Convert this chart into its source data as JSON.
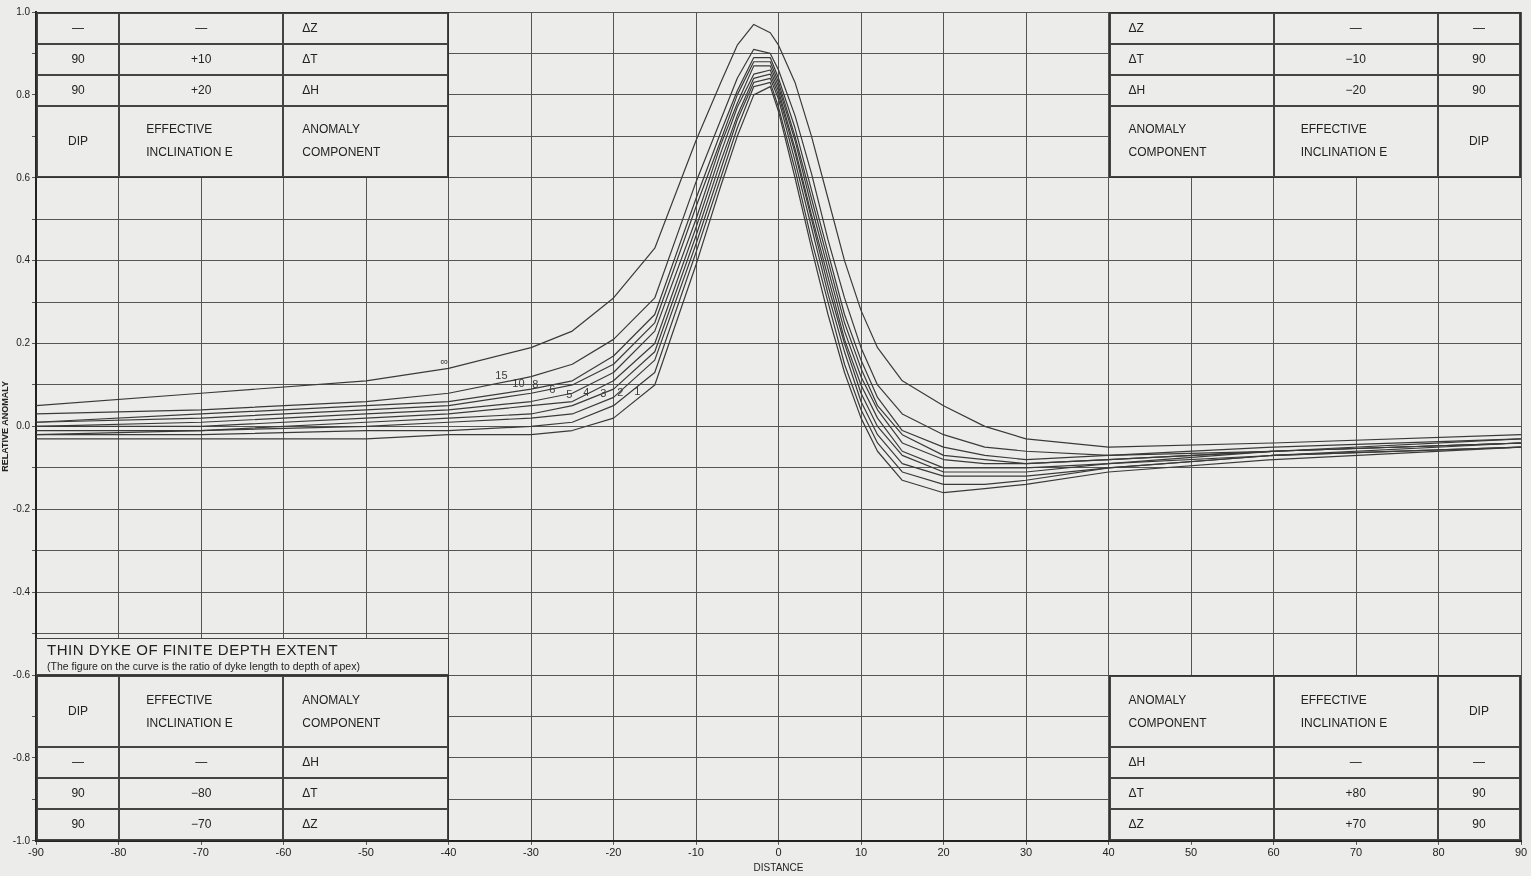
{
  "chart_data": {
    "type": "line",
    "title": "THIN DYKE OF FINITE DEPTH EXTENT",
    "subtitle": "(The figure on the curve is the ratio of dyke length to depth of apex)",
    "xlabel": "DISTANCE",
    "ylabel": "RELATIVE ANOMALY",
    "x": [
      -90,
      -70,
      -50,
      -40,
      -30,
      -25,
      -20,
      -15,
      -10,
      -7,
      -5,
      -3,
      -1,
      0,
      2,
      4,
      6,
      8,
      10,
      12,
      15,
      20,
      25,
      30,
      40,
      60,
      90
    ],
    "series": [
      {
        "name": "∞",
        "color": "#3a3a3a",
        "values": [
          0.05,
          0.08,
          0.11,
          0.14,
          0.19,
          0.23,
          0.31,
          0.43,
          0.69,
          0.83,
          0.92,
          0.97,
          0.95,
          0.92,
          0.83,
          0.7,
          0.55,
          0.4,
          0.28,
          0.19,
          0.11,
          0.05,
          0.0,
          -0.03,
          -0.05,
          -0.04,
          -0.02
        ]
      },
      {
        "name": "15",
        "color": "#3a3a3a",
        "values": [
          0.03,
          0.04,
          0.06,
          0.08,
          0.12,
          0.15,
          0.21,
          0.31,
          0.59,
          0.74,
          0.84,
          0.91,
          0.9,
          0.86,
          0.75,
          0.61,
          0.45,
          0.31,
          0.19,
          0.1,
          0.03,
          -0.02,
          -0.05,
          -0.06,
          -0.07,
          -0.05,
          -0.03
        ]
      },
      {
        "name": "10",
        "color": "#3a3a3a",
        "values": [
          0.01,
          0.03,
          0.05,
          0.06,
          0.09,
          0.11,
          0.17,
          0.27,
          0.55,
          0.71,
          0.81,
          0.89,
          0.89,
          0.84,
          0.72,
          0.57,
          0.42,
          0.27,
          0.16,
          0.07,
          -0.01,
          -0.05,
          -0.07,
          -0.08,
          -0.07,
          -0.06,
          -0.03
        ]
      },
      {
        "name": "8",
        "color": "#3a3a3a",
        "values": [
          0.01,
          0.02,
          0.04,
          0.05,
          0.08,
          0.1,
          0.15,
          0.25,
          0.53,
          0.69,
          0.8,
          0.88,
          0.88,
          0.83,
          0.7,
          0.55,
          0.4,
          0.25,
          0.14,
          0.05,
          -0.02,
          -0.07,
          -0.08,
          -0.09,
          -0.08,
          -0.06,
          -0.04
        ]
      },
      {
        "name": "6",
        "color": "#3a3a3a",
        "values": [
          0.0,
          0.01,
          0.03,
          0.04,
          0.06,
          0.08,
          0.13,
          0.23,
          0.5,
          0.68,
          0.78,
          0.87,
          0.87,
          0.82,
          0.69,
          0.53,
          0.38,
          0.23,
          0.12,
          0.04,
          -0.04,
          -0.08,
          -0.09,
          -0.09,
          -0.08,
          -0.06,
          -0.04
        ]
      },
      {
        "name": "5",
        "color": "#3a3a3a",
        "values": [
          0.0,
          0.0,
          0.02,
          0.03,
          0.05,
          0.06,
          0.11,
          0.2,
          0.48,
          0.66,
          0.77,
          0.85,
          0.86,
          0.81,
          0.67,
          0.51,
          0.36,
          0.21,
          0.1,
          0.02,
          -0.06,
          -0.1,
          -0.1,
          -0.1,
          -0.09,
          -0.06,
          -0.04
        ]
      },
      {
        "name": "4",
        "color": "#3a3a3a",
        "values": [
          -0.01,
          -0.01,
          0.01,
          0.02,
          0.03,
          0.05,
          0.09,
          0.18,
          0.46,
          0.64,
          0.75,
          0.84,
          0.85,
          0.8,
          0.66,
          0.5,
          0.34,
          0.2,
          0.08,
          0.0,
          -0.07,
          -0.11,
          -0.11,
          -0.11,
          -0.09,
          -0.07,
          -0.04
        ]
      },
      {
        "name": "3",
        "color": "#3a3a3a",
        "values": [
          -0.02,
          -0.01,
          0.0,
          0.01,
          0.02,
          0.03,
          0.07,
          0.16,
          0.44,
          0.62,
          0.74,
          0.83,
          0.84,
          0.79,
          0.64,
          0.48,
          0.32,
          0.18,
          0.06,
          -0.02,
          -0.09,
          -0.12,
          -0.12,
          -0.12,
          -0.1,
          -0.07,
          -0.05
        ]
      },
      {
        "name": "2",
        "color": "#3a3a3a",
        "values": [
          -0.02,
          -0.02,
          -0.01,
          -0.01,
          0.0,
          0.01,
          0.05,
          0.13,
          0.42,
          0.6,
          0.72,
          0.82,
          0.83,
          0.77,
          0.62,
          0.45,
          0.3,
          0.15,
          0.04,
          -0.04,
          -0.11,
          -0.14,
          -0.14,
          -0.13,
          -0.1,
          -0.07,
          -0.05
        ]
      },
      {
        "name": "1",
        "color": "#3a3a3a",
        "values": [
          -0.03,
          -0.03,
          -0.03,
          -0.02,
          -0.02,
          -0.01,
          0.02,
          0.1,
          0.39,
          0.58,
          0.7,
          0.8,
          0.82,
          0.76,
          0.6,
          0.43,
          0.27,
          0.13,
          0.02,
          -0.06,
          -0.13,
          -0.16,
          -0.15,
          -0.14,
          -0.11,
          -0.08,
          -0.05
        ]
      }
    ],
    "xlim": [
      -90,
      90
    ],
    "xticks": [
      -90,
      -80,
      -70,
      -60,
      -50,
      -40,
      -30,
      -20,
      -10,
      0,
      10,
      20,
      30,
      40,
      50,
      60,
      70,
      80,
      90
    ],
    "ylim": [
      -1.0,
      1.0
    ],
    "yticks": [
      {
        "value": -1.0,
        "label": "-1.0"
      },
      {
        "value": -0.9,
        "label": null
      },
      {
        "value": -0.8,
        "label": "-0.8"
      },
      {
        "value": -0.7,
        "label": null
      },
      {
        "value": -0.6,
        "label": "-0.6"
      },
      {
        "value": -0.5,
        "label": null
      },
      {
        "value": -0.4,
        "label": "-0.4"
      },
      {
        "value": -0.3,
        "label": null
      },
      {
        "value": -0.2,
        "label": "-0.2"
      },
      {
        "value": -0.1,
        "label": null
      },
      {
        "value": 0.0,
        "label": "0.0"
      },
      {
        "value": 0.1,
        "label": null
      },
      {
        "value": 0.2,
        "label": "0.2"
      },
      {
        "value": 0.3,
        "label": null
      },
      {
        "value": 0.4,
        "label": "0.4"
      },
      {
        "value": 0.5,
        "label": null
      },
      {
        "value": 0.6,
        "label": "0.6"
      },
      {
        "value": 0.7,
        "label": null
      },
      {
        "value": 0.8,
        "label": "0.8"
      },
      {
        "value": 0.9,
        "label": null
      },
      {
        "value": 1.0,
        "label": "1.0"
      }
    ],
    "grid": true,
    "marker": "none",
    "line_style": "solid",
    "annotations": [
      "ANOMALY COMPONENT",
      "EFFECTIVE INCLINATION E",
      "DIP",
      "ΔH",
      "+20",
      "90",
      "ΔT",
      "+10",
      "90",
      "ΔZ",
      "—",
      "—",
      "ANOMALY COMPONENT",
      "EFFECTIVE INCLINATION E",
      "DIP",
      "ΔH",
      "−20",
      "90",
      "ΔT",
      "−10",
      "90",
      "ΔZ",
      "—",
      "—",
      "ANOMALY COMPONENT",
      "EFFECTIVE INCLINATION E",
      "DIP",
      "ΔH",
      "—",
      "—",
      "ΔT",
      "−80",
      "90",
      "ΔZ",
      "−70",
      "90",
      "ANOMALY COMPONENT",
      "EFFECTIVE INCLINATION E",
      "DIP",
      "ΔH",
      "—",
      "—",
      "ΔT",
      "+80",
      "90",
      "ΔZ",
      "+70",
      "90"
    ]
  }
}
